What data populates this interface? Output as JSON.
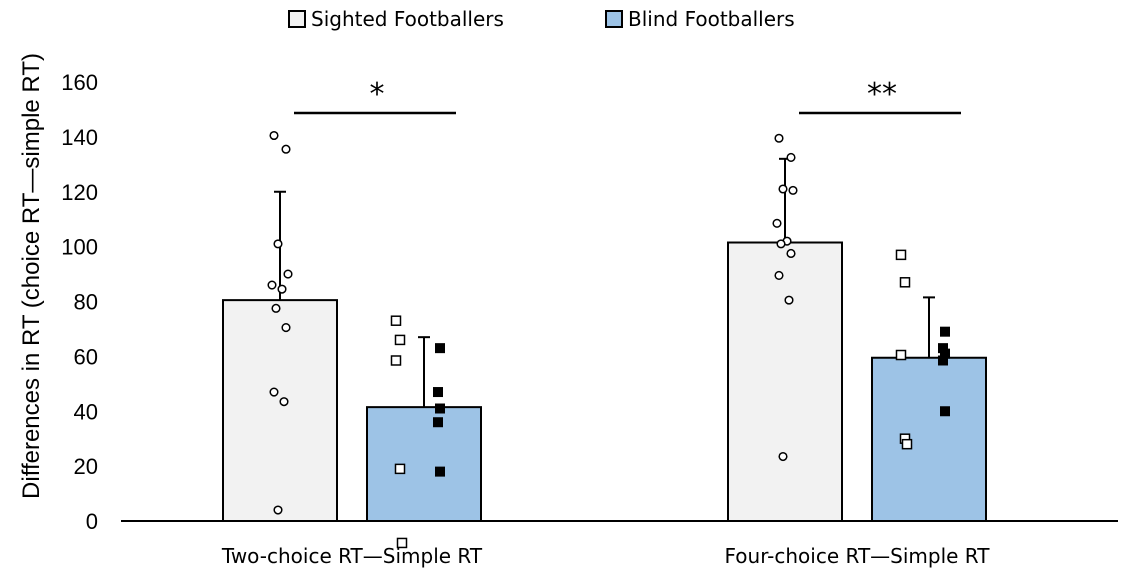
{
  "chart_data": {
    "type": "bar",
    "ylabel": "Differences in RT (choice RT—simple RT)",
    "ylim": [
      0,
      160
    ],
    "yticks": [
      0,
      20,
      40,
      60,
      80,
      100,
      120,
      140,
      160
    ],
    "categories": [
      "Two-choice RT—Simple RT",
      "Four-choice RT—Simple RT"
    ],
    "legend_position": "top-center",
    "series": [
      {
        "name": "Sighted Footballers",
        "color": "#f2f2f2",
        "values": [
          80.5,
          101.5
        ],
        "error_sd": [
          39.5,
          30.5
        ],
        "points": [
          [
            140.5,
            135.5,
            101,
            90,
            86,
            84.5,
            77.5,
            70.5,
            47,
            43.5,
            4
          ],
          [
            139.5,
            132.5,
            121,
            120.5,
            108.5,
            102,
            101,
            97.5,
            89.5,
            80.5,
            23.5
          ]
        ]
      },
      {
        "name": "Blind Footballers",
        "color": "#9dc3e6",
        "values": [
          41.5,
          59.5
        ],
        "error_sd": [
          25.5,
          22
        ],
        "points_open": [
          [
            73,
            66,
            58.5,
            19,
            -8
          ],
          [
            97,
            87,
            60.5,
            30,
            28
          ]
        ],
        "points_filled": [
          [
            63,
            47,
            41,
            36,
            18
          ],
          [
            69,
            63,
            61,
            58.5,
            40
          ]
        ]
      }
    ],
    "significance": [
      {
        "category": 0,
        "label": "*"
      },
      {
        "category": 1,
        "label": "**"
      }
    ]
  }
}
